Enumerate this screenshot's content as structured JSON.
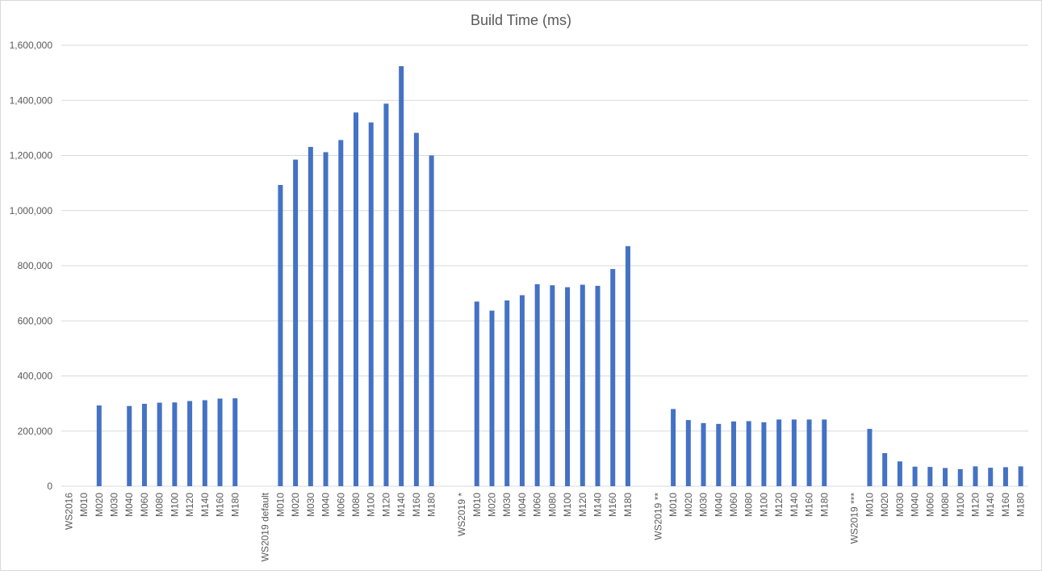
{
  "chart_data": {
    "type": "bar",
    "title": "Build Time (ms)",
    "xlabel": "",
    "ylabel": "",
    "ylim": [
      0,
      1600000
    ],
    "yticks": [
      0,
      200000,
      400000,
      600000,
      800000,
      1000000,
      1200000,
      1400000,
      1600000
    ],
    "ytick_labels": [
      "0",
      "200,000",
      "400,000",
      "600,000",
      "800,000",
      "1,000,000",
      "1,200,000",
      "1,400,000",
      "1,600,000"
    ],
    "grid": true,
    "legend": "none",
    "bar_color": "#4472C4",
    "categories": [
      "WS2016",
      "M010",
      "M020",
      "M030",
      "M040",
      "M060",
      "M080",
      "M100",
      "M120",
      "M140",
      "M160",
      "M180",
      "",
      "WS2019 default",
      "M010",
      "M020",
      "M030",
      "M040",
      "M060",
      "M080",
      "M100",
      "M120",
      "M140",
      "M160",
      "M180",
      "",
      "WS2019 *",
      "M010",
      "M020",
      "M030",
      "M040",
      "M060",
      "M080",
      "M100",
      "M120",
      "M140",
      "M160",
      "M180",
      "",
      "WS2019 **",
      "M010",
      "M020",
      "M030",
      "M040",
      "M060",
      "M080",
      "M100",
      "M120",
      "M140",
      "M160",
      "M180",
      "",
      "WS2019 ***",
      "M010",
      "M020",
      "M030",
      "M040",
      "M060",
      "M080",
      "M100",
      "M120",
      "M140",
      "M160",
      "M180"
    ],
    "values": [
      null,
      null,
      293000,
      null,
      291000,
      299000,
      303000,
      304000,
      309000,
      312000,
      318000,
      319000,
      null,
      null,
      1093000,
      1185000,
      1231000,
      1212000,
      1256000,
      1356000,
      1320000,
      1388000,
      1524000,
      1282000,
      1200000,
      null,
      null,
      670000,
      637000,
      674000,
      693000,
      733000,
      729000,
      722000,
      731000,
      727000,
      788000,
      871000,
      null,
      null,
      280000,
      240000,
      229000,
      226000,
      235000,
      236000,
      232000,
      242000,
      242000,
      242000,
      242000,
      null,
      null,
      208000,
      120000,
      90000,
      71000,
      70000,
      66000,
      62000,
      72000,
      67000,
      69000,
      72000
    ]
  }
}
